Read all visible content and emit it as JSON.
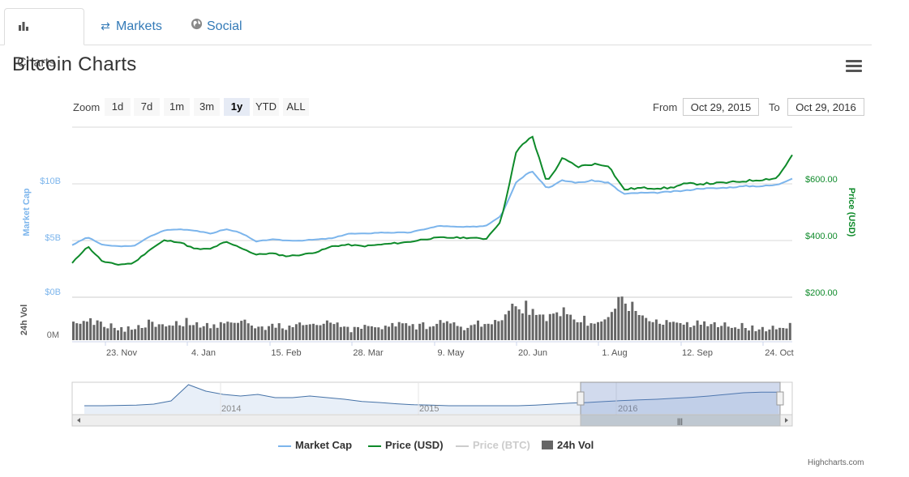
{
  "tabs": [
    {
      "label": "Charts",
      "icon": "bar-chart-icon",
      "active": true
    },
    {
      "label": "Markets",
      "icon": "exchange-arrows-icon",
      "active": false
    },
    {
      "label": "Social",
      "icon": "globe-icon",
      "active": false
    }
  ],
  "page_title": "Bitcoin Charts",
  "range_selector": {
    "zoom_label": "Zoom",
    "buttons": [
      "1d",
      "7d",
      "1m",
      "3m",
      "1y",
      "YTD",
      "ALL"
    ],
    "selected": "1y",
    "from_label": "From",
    "from_value": "Oct 29, 2015",
    "to_label": "To",
    "to_value": "Oct 29, 2016"
  },
  "legend": [
    {
      "name": "Market Cap",
      "color": "#7cb5ec",
      "visible": true
    },
    {
      "name": "Price (USD)",
      "color": "#0e8a2a",
      "visible": true
    },
    {
      "name": "Price (BTC)",
      "color": "#cccccc",
      "visible": false
    },
    {
      "name": "24h Vol",
      "color": "#666666",
      "visible": true
    }
  ],
  "credits": "Highcharts.com",
  "chart_data": {
    "type": "line",
    "x_tick_labels": [
      "23. Nov",
      "4. Jan",
      "15. Feb",
      "28. Mar",
      "9. May",
      "20. Jun",
      "1. Aug",
      "12. Sep",
      "24. Oct"
    ],
    "left_axis": {
      "title": "Market Cap",
      "ticks": [
        "$0B",
        "$5B",
        "$10B"
      ],
      "range": [
        0,
        10
      ]
    },
    "right_axis": {
      "title": "Price (USD)",
      "ticks": [
        "$200.00",
        "$400.00",
        "$600.00"
      ],
      "range": [
        200,
        600
      ]
    },
    "volume_axis": {
      "title": "24h Vol",
      "ticks": [
        "0M"
      ]
    },
    "navigator_labels": [
      "2014",
      "2015",
      "2016"
    ],
    "series": [
      {
        "name": "Market Cap",
        "unit": "billion USD",
        "values": [
          4.6,
          5.3,
          4.6,
          4.5,
          4.5,
          5.3,
          5.9,
          6.0,
          5.9,
          5.6,
          6.0,
          5.7,
          4.9,
          5.1,
          5.0,
          5.0,
          5.1,
          5.2,
          5.6,
          5.6,
          5.7,
          5.7,
          5.7,
          6.0,
          6.3,
          6.2,
          6.2,
          6.3,
          7.2,
          10.2,
          11.2,
          9.6,
          10.3,
          10.1,
          10.3,
          10.1,
          9.1,
          9.2,
          9.2,
          9.3,
          9.4,
          9.6,
          9.6,
          9.7,
          9.8,
          9.8,
          9.9,
          10.5
        ]
      },
      {
        "name": "Price (USD)",
        "unit": "USD",
        "values": [
          320,
          380,
          325,
          315,
          320,
          365,
          400,
          395,
          370,
          370,
          395,
          375,
          350,
          355,
          345,
          350,
          360,
          380,
          385,
          380,
          385,
          390,
          395,
          405,
          410,
          410,
          410,
          405,
          470,
          715,
          770,
          605,
          690,
          660,
          670,
          665,
          580,
          585,
          585,
          585,
          600,
          600,
          602,
          605,
          610,
          615,
          620,
          700
        ]
      },
      {
        "name": "24h Vol",
        "unit": "relative",
        "values": [
          0.3,
          0.4,
          0.25,
          0.2,
          0.2,
          0.3,
          0.25,
          0.3,
          0.3,
          0.25,
          0.3,
          0.35,
          0.25,
          0.25,
          0.2,
          0.3,
          0.3,
          0.25,
          0.2,
          0.25,
          0.2,
          0.3,
          0.25,
          0.25,
          0.3,
          0.3,
          0.25,
          0.3,
          0.4,
          0.75,
          0.65,
          0.45,
          0.5,
          0.4,
          0.35,
          0.4,
          0.85,
          0.45,
          0.3,
          0.3,
          0.25,
          0.3,
          0.25,
          0.25,
          0.2,
          0.2,
          0.2,
          0.25
        ]
      }
    ],
    "navigator_series": [
      2.0,
      2.0,
      2.1,
      2.2,
      2.5,
      3.5,
      8.5,
      6.5,
      5.5,
      5.0,
      5.5,
      4.5,
      4.5,
      5.0,
      4.5,
      4.0,
      3.3,
      3.0,
      2.6,
      2.3,
      2.2,
      2.0,
      2.0,
      2.0,
      2.0,
      2.0,
      2.2,
      2.5,
      2.8,
      3.0,
      3.3,
      3.6,
      3.8,
      4.0,
      4.3,
      4.6,
      5.0,
      5.5,
      6.0,
      6.2,
      6.2
    ]
  }
}
